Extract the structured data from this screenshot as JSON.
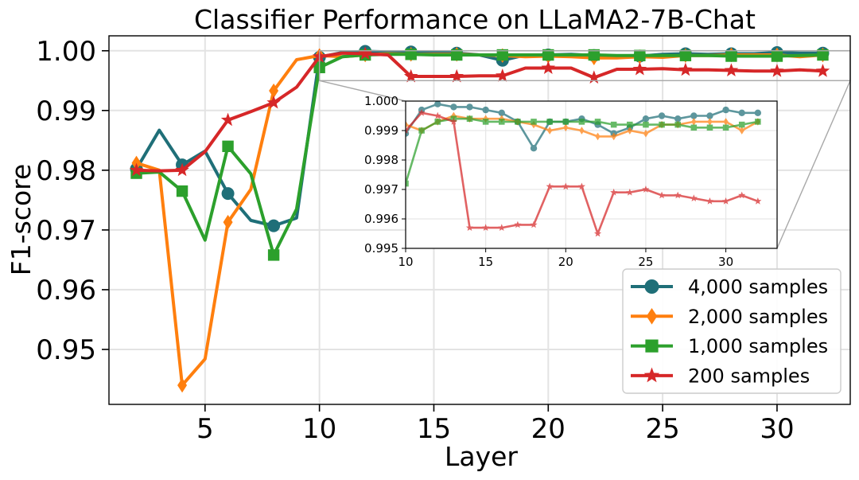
{
  "chart_data": {
    "type": "line",
    "title": "Classifier Performance on LLaMA2-7B-Chat",
    "xlabel": "Layer",
    "ylabel": "F1-score",
    "xlim": [
      0.8,
      33.2
    ],
    "ylim": [
      0.9408,
      1.0025
    ],
    "xticks": [
      5,
      10,
      15,
      20,
      25,
      30
    ],
    "yticks": [
      0.95,
      0.96,
      0.97,
      0.98,
      0.99,
      1.0
    ],
    "ytick_labels": [
      "0.95",
      "0.96",
      "0.97",
      "0.98",
      "0.99",
      "1.00"
    ],
    "grid": true,
    "legend_position": "bottom-right",
    "x": [
      2,
      3,
      4,
      5,
      6,
      7,
      8,
      9,
      10,
      11,
      12,
      13,
      14,
      15,
      16,
      17,
      18,
      19,
      20,
      21,
      22,
      23,
      24,
      25,
      26,
      27,
      28,
      29,
      30,
      31,
      32
    ],
    "series": [
      {
        "name": "4,000 samples",
        "color": "#1f6f78",
        "marker": "circle",
        "values": [
          0.9802,
          0.9867,
          0.9809,
          0.9832,
          0.9761,
          0.9716,
          0.9707,
          0.972,
          0.9989,
          0.9997,
          0.9999,
          0.9998,
          0.9998,
          0.9997,
          0.9996,
          0.9993,
          0.9984,
          0.9993,
          0.9993,
          0.9994,
          0.9992,
          0.9989,
          0.9991,
          0.9994,
          0.9995,
          0.9994,
          0.9995,
          0.9995,
          0.9997,
          0.9996,
          0.9996
        ]
      },
      {
        "name": "2,000 samples",
        "color": "#ff7f0e",
        "marker": "diamond",
        "values": [
          0.9812,
          0.98,
          0.944,
          0.9484,
          0.9713,
          0.9768,
          0.9933,
          0.9985,
          0.9992,
          0.999,
          0.9993,
          0.9995,
          0.9994,
          0.9994,
          0.9994,
          0.9993,
          0.9992,
          0.999,
          0.9991,
          0.999,
          0.9988,
          0.9988,
          0.999,
          0.9989,
          0.9992,
          0.9992,
          0.9993,
          0.9993,
          0.9993,
          0.999,
          0.9993
        ]
      },
      {
        "name": "1,000 samples",
        "color": "#2ca02c",
        "marker": "square",
        "values": [
          0.9795,
          0.9797,
          0.9765,
          0.9683,
          0.984,
          0.9794,
          0.9658,
          0.9735,
          0.9972,
          0.999,
          0.9993,
          0.9994,
          0.9994,
          0.9993,
          0.9993,
          0.9993,
          0.9993,
          0.9993,
          0.9993,
          0.9993,
          0.9993,
          0.9992,
          0.9992,
          0.9992,
          0.9992,
          0.9992,
          0.9991,
          0.9991,
          0.9991,
          0.9992,
          0.9993
        ]
      },
      {
        "name": "200 samples",
        "color": "#d62728",
        "marker": "star",
        "values": [
          0.98,
          0.9799,
          0.98,
          0.9831,
          0.9884,
          0.9898,
          0.9913,
          0.9939,
          0.999,
          0.9996,
          0.9995,
          0.9993,
          0.9957,
          0.9957,
          0.9957,
          0.9958,
          0.9958,
          0.9971,
          0.9971,
          0.9971,
          0.9955,
          0.9969,
          0.9969,
          0.997,
          0.9968,
          0.9968,
          0.9967,
          0.9966,
          0.9966,
          0.9968,
          0.9966
        ]
      }
    ],
    "inset": {
      "xlim": [
        10,
        33.2
      ],
      "ylim": [
        0.995,
        1.0
      ],
      "xticks": [
        10,
        15,
        20,
        25,
        30
      ],
      "yticks": [
        0.995,
        0.996,
        0.997,
        0.998,
        0.999,
        1.0
      ],
      "ytick_labels": [
        "0.995",
        "0.996",
        "0.997",
        "0.998",
        "0.999",
        "1.000"
      ]
    }
  }
}
